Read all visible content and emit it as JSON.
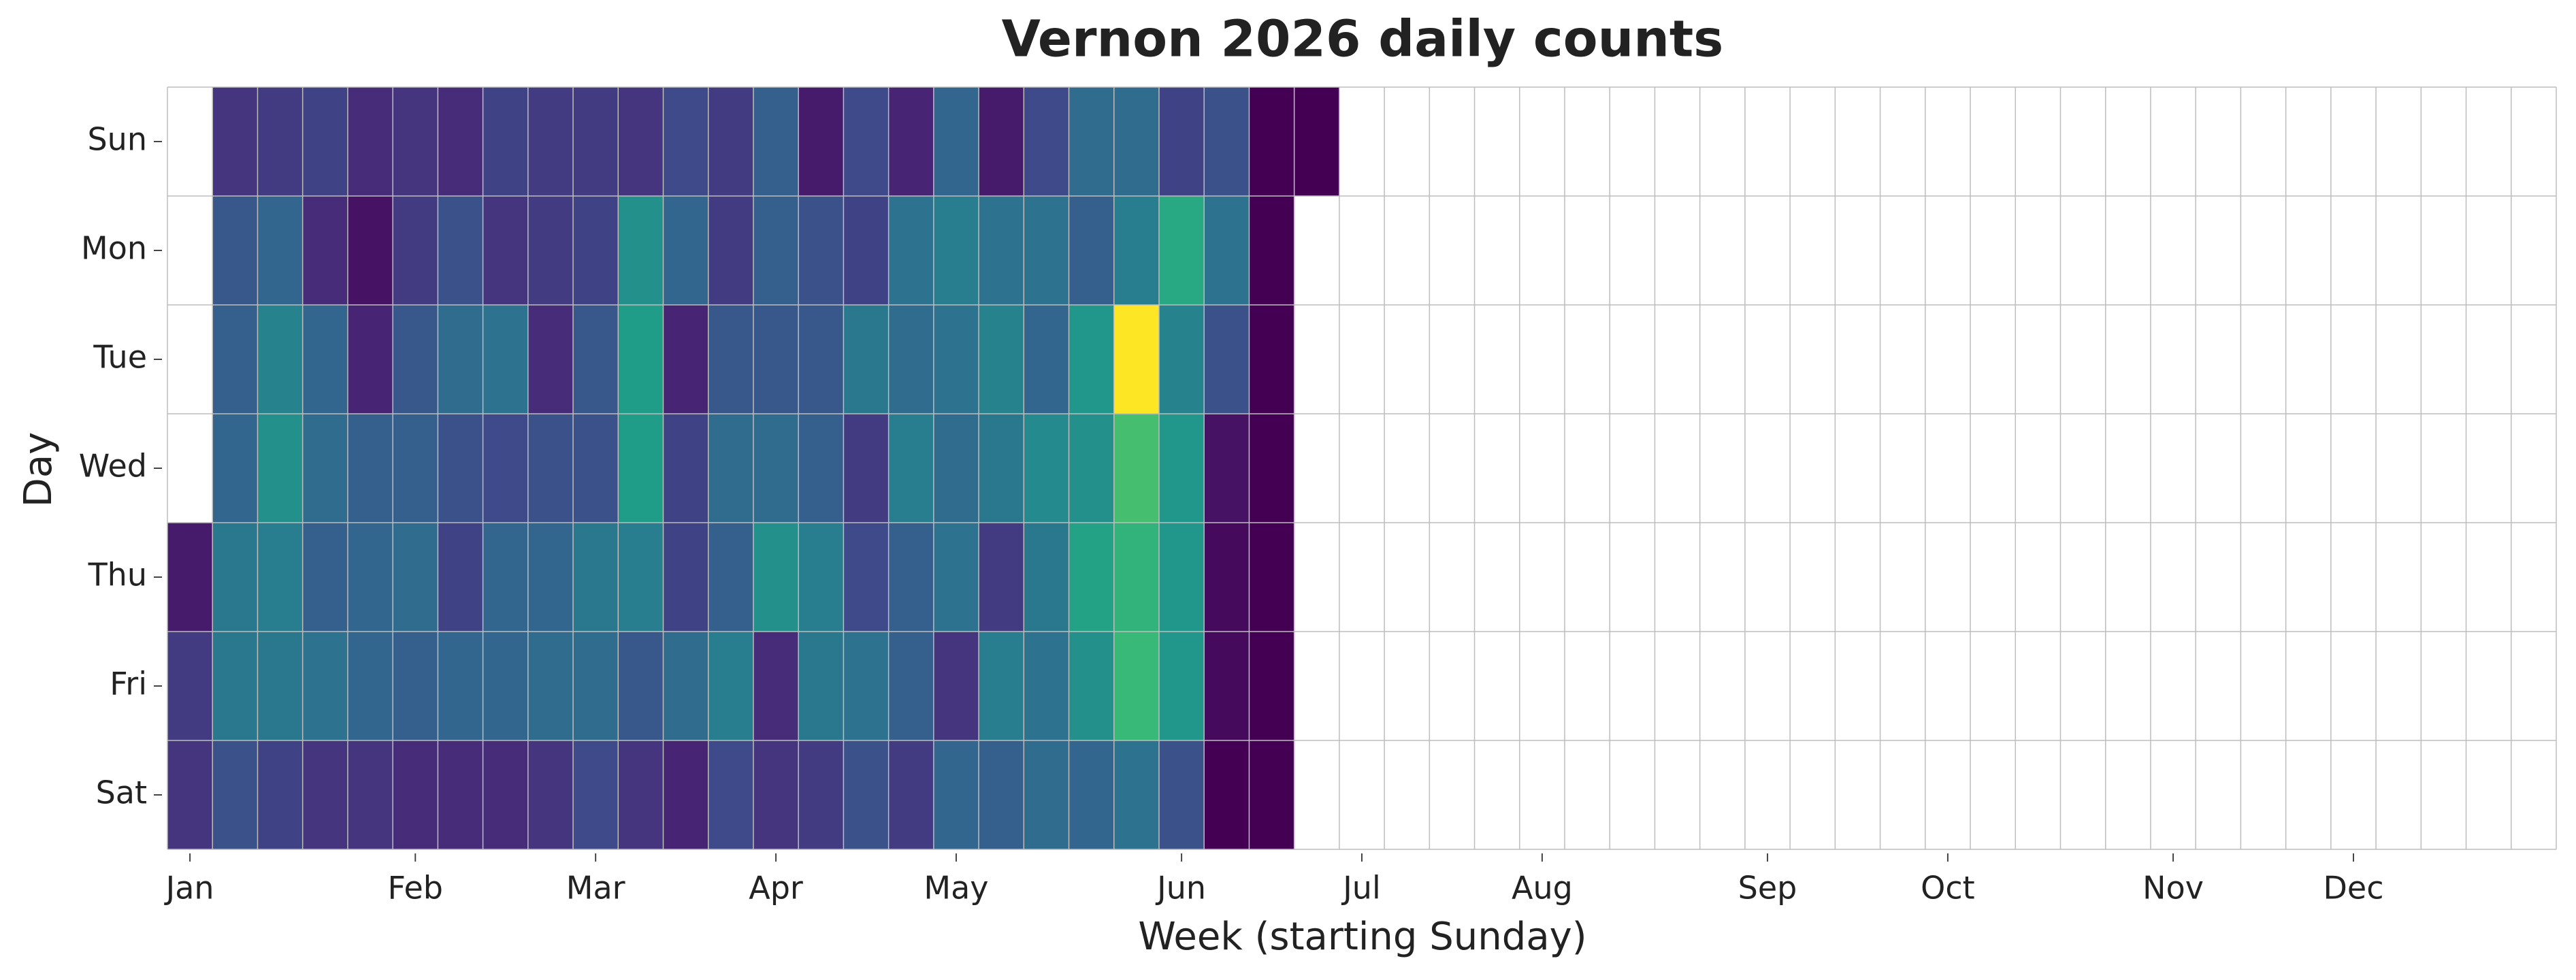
{
  "chart_data": {
    "type": "calendar-heatmap",
    "title": "Vernon 2026 daily counts",
    "x_label": "Week (starting Sunday)",
    "y_label": "Day",
    "categories": [
      "Sun",
      "Mon",
      "Tue",
      "Wed",
      "Thu",
      "Fri",
      "Sat"
    ],
    "xlim": [
      0,
      53
    ],
    "xticks": [
      {
        "value": 0.5,
        "label": "Jan"
      },
      {
        "value": 5.5,
        "label": "Feb"
      },
      {
        "value": 9.5,
        "label": "Mar"
      },
      {
        "value": 13.5,
        "label": "Apr"
      },
      {
        "value": 17.5,
        "label": "May"
      },
      {
        "value": 22.5,
        "label": "Jun"
      },
      {
        "value": 26.5,
        "label": "Jul"
      },
      {
        "value": 30.5,
        "label": "Aug"
      },
      {
        "value": 35.5,
        "label": "Sep"
      },
      {
        "value": 39.5,
        "label": "Oct"
      },
      {
        "value": 44.5,
        "label": "Nov"
      },
      {
        "value": 48.5,
        "label": "Dec"
      }
    ],
    "colormap": "viridis",
    "grid": true,
    "z": [
      [
        null,
        6,
        7,
        8,
        5,
        6,
        5,
        8,
        7,
        7,
        6,
        9,
        7,
        12,
        3,
        9,
        4,
        13,
        3,
        9,
        14,
        14,
        8,
        10,
        0,
        0
      ],
      [
        null,
        11,
        13,
        5,
        2,
        7,
        10,
        6,
        7,
        8,
        20,
        13,
        7,
        12,
        10,
        8,
        15,
        17,
        15,
        15,
        12,
        17,
        24,
        15,
        0,
        null
      ],
      [
        null,
        12,
        18,
        13,
        4,
        11,
        14,
        15,
        5,
        11,
        22,
        4,
        11,
        11,
        11,
        16,
        14,
        15,
        18,
        13,
        21,
        40,
        18,
        10,
        0,
        null
      ],
      [
        null,
        13,
        20,
        14,
        12,
        12,
        10,
        9,
        10,
        10,
        22,
        8,
        14,
        14,
        12,
        7,
        17,
        14,
        16,
        19,
        20,
        28,
        21,
        2,
        0,
        null
      ],
      [
        3,
        16,
        17,
        12,
        13,
        14,
        8,
        13,
        13,
        16,
        17,
        8,
        12,
        20,
        17,
        9,
        12,
        15,
        7,
        16,
        23,
        26,
        21,
        1,
        0,
        null
      ],
      [
        7,
        16,
        16,
        15,
        13,
        12,
        13,
        13,
        14,
        14,
        11,
        14,
        17,
        5,
        16,
        15,
        12,
        6,
        17,
        15,
        20,
        27,
        21,
        1,
        0,
        null
      ],
      [
        6,
        10,
        8,
        6,
        6,
        5,
        5,
        5,
        6,
        9,
        6,
        4,
        9,
        6,
        7,
        10,
        7,
        13,
        12,
        14,
        13,
        15,
        10,
        0,
        0,
        null
      ]
    ]
  }
}
